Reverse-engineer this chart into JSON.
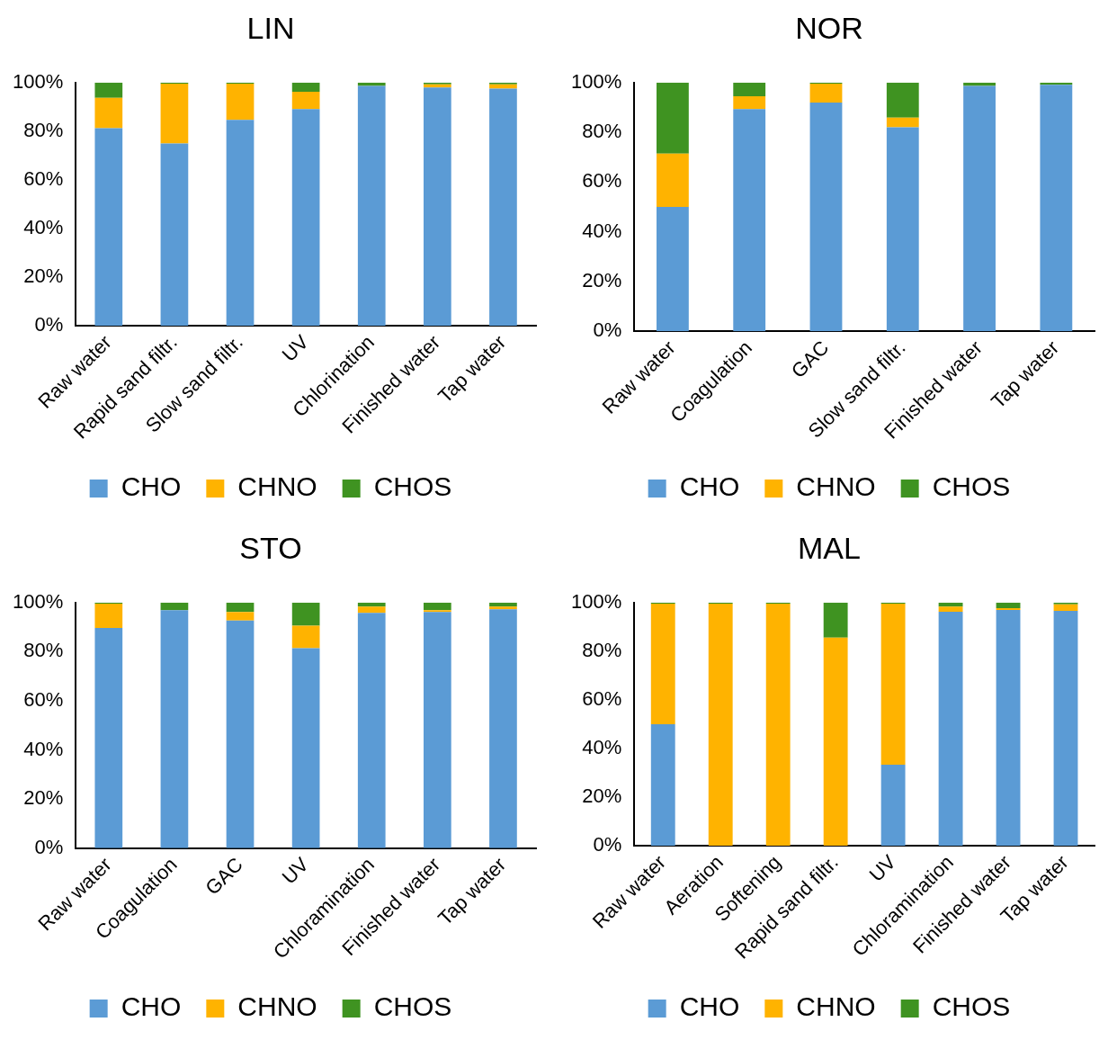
{
  "chart_data": [
    {
      "type": "bar",
      "title": "LIN",
      "stacked": true,
      "legend": "bottom",
      "grid": false,
      "ylim": [
        0,
        100
      ],
      "yticks": [
        {
          "value": 0,
          "label": "0%"
        },
        {
          "value": 20,
          "label": "20%"
        },
        {
          "value": 40,
          "label": "40%"
        },
        {
          "value": 60,
          "label": "60%"
        },
        {
          "value": 80,
          "label": "80%"
        },
        {
          "value": 100,
          "label": "100%"
        }
      ],
      "categories": [
        "Raw water",
        "Rapid sand filtr.",
        "Slow sand filtr.",
        "UV",
        "Chlorination",
        "Finished water",
        "Tap water"
      ],
      "series": [
        {
          "name": "CHO",
          "color": "#5b9bd5",
          "values": [
            81.2,
            75,
            84.7,
            89.1,
            98.6,
            98,
            97.5
          ]
        },
        {
          "name": "CHNO",
          "color": "#ffb300",
          "values": [
            12.5,
            24.6,
            14.9,
            7.1,
            0,
            1.3,
            1.8
          ]
        },
        {
          "name": "CHOS",
          "color": "#3f9321",
          "values": [
            6.3,
            0.4,
            0.4,
            3.8,
            1.4,
            0.7,
            0.7
          ]
        }
      ]
    },
    {
      "type": "bar",
      "title": "NOR",
      "stacked": true,
      "legend": "bottom",
      "grid": false,
      "ylim": [
        0,
        100
      ],
      "yticks": [
        {
          "value": 0,
          "label": "0%"
        },
        {
          "value": 20,
          "label": "20%"
        },
        {
          "value": 40,
          "label": "40%"
        },
        {
          "value": 60,
          "label": "60%"
        },
        {
          "value": 80,
          "label": "80%"
        },
        {
          "value": 100,
          "label": "100%"
        }
      ],
      "categories": [
        "Raw water",
        "Coagulation",
        "GAC",
        "Slow sand filtr.",
        "Finished water",
        "Tap water"
      ],
      "series": [
        {
          "name": "CHO",
          "color": "#5b9bd5",
          "values": [
            50,
            89.3,
            92,
            82,
            98.7,
            99.1
          ]
        },
        {
          "name": "CHNO",
          "color": "#ffb300",
          "values": [
            21.4,
            5.2,
            7.6,
            3.9,
            0,
            0
          ]
        },
        {
          "name": "CHOS",
          "color": "#3f9321",
          "values": [
            28.6,
            5.5,
            0.4,
            14.1,
            1.3,
            0.9
          ]
        }
      ]
    },
    {
      "type": "bar",
      "title": "STO",
      "stacked": true,
      "legend": "bottom",
      "grid": false,
      "ylim": [
        0,
        100
      ],
      "yticks": [
        {
          "value": 0,
          "label": "0%"
        },
        {
          "value": 20,
          "label": "20%"
        },
        {
          "value": 40,
          "label": "40%"
        },
        {
          "value": 60,
          "label": "60%"
        },
        {
          "value": 80,
          "label": "80%"
        },
        {
          "value": 100,
          "label": "100%"
        }
      ],
      "categories": [
        "Raw water",
        "Coagulation",
        "GAC",
        "UV",
        "Chloramination",
        "Finished water",
        "Tap water"
      ],
      "series": [
        {
          "name": "CHO",
          "color": "#5b9bd5",
          "values": [
            89.7,
            96.9,
            92.7,
            81.4,
            95.8,
            96.2,
            97.3
          ]
        },
        {
          "name": "CHNO",
          "color": "#ffb300",
          "values": [
            9.9,
            0,
            3.5,
            9.2,
            2.6,
            0.7,
            1.1
          ]
        },
        {
          "name": "CHOS",
          "color": "#3f9321",
          "values": [
            0.4,
            3.1,
            3.8,
            9.4,
            1.6,
            3.1,
            1.6
          ]
        }
      ]
    },
    {
      "type": "bar",
      "title": "MAL",
      "stacked": true,
      "legend": "bottom",
      "grid": false,
      "ylim": [
        0,
        100
      ],
      "yticks": [
        {
          "value": 0,
          "label": "0%"
        },
        {
          "value": 20,
          "label": "20%"
        },
        {
          "value": 40,
          "label": "40%"
        },
        {
          "value": 60,
          "label": "60%"
        },
        {
          "value": 80,
          "label": "80%"
        },
        {
          "value": 100,
          "label": "100%"
        }
      ],
      "categories": [
        "Raw water",
        "Aeration",
        "Softening",
        "Rapid sand filtr.",
        "UV",
        "Chloramination",
        "Finished water",
        "Tap water"
      ],
      "series": [
        {
          "name": "CHO",
          "color": "#5b9bd5",
          "values": [
            50,
            0,
            0,
            0,
            33.3,
            96.2,
            97,
            96.6
          ]
        },
        {
          "name": "CHNO",
          "color": "#ffb300",
          "values": [
            49.6,
            99.6,
            99.6,
            85.6,
            66.3,
            2.2,
            0.7,
            2.7
          ]
        },
        {
          "name": "CHOS",
          "color": "#3f9321",
          "values": [
            0.4,
            0.4,
            0.4,
            14.4,
            0.4,
            1.6,
            2.3,
            0.7
          ]
        }
      ]
    }
  ]
}
